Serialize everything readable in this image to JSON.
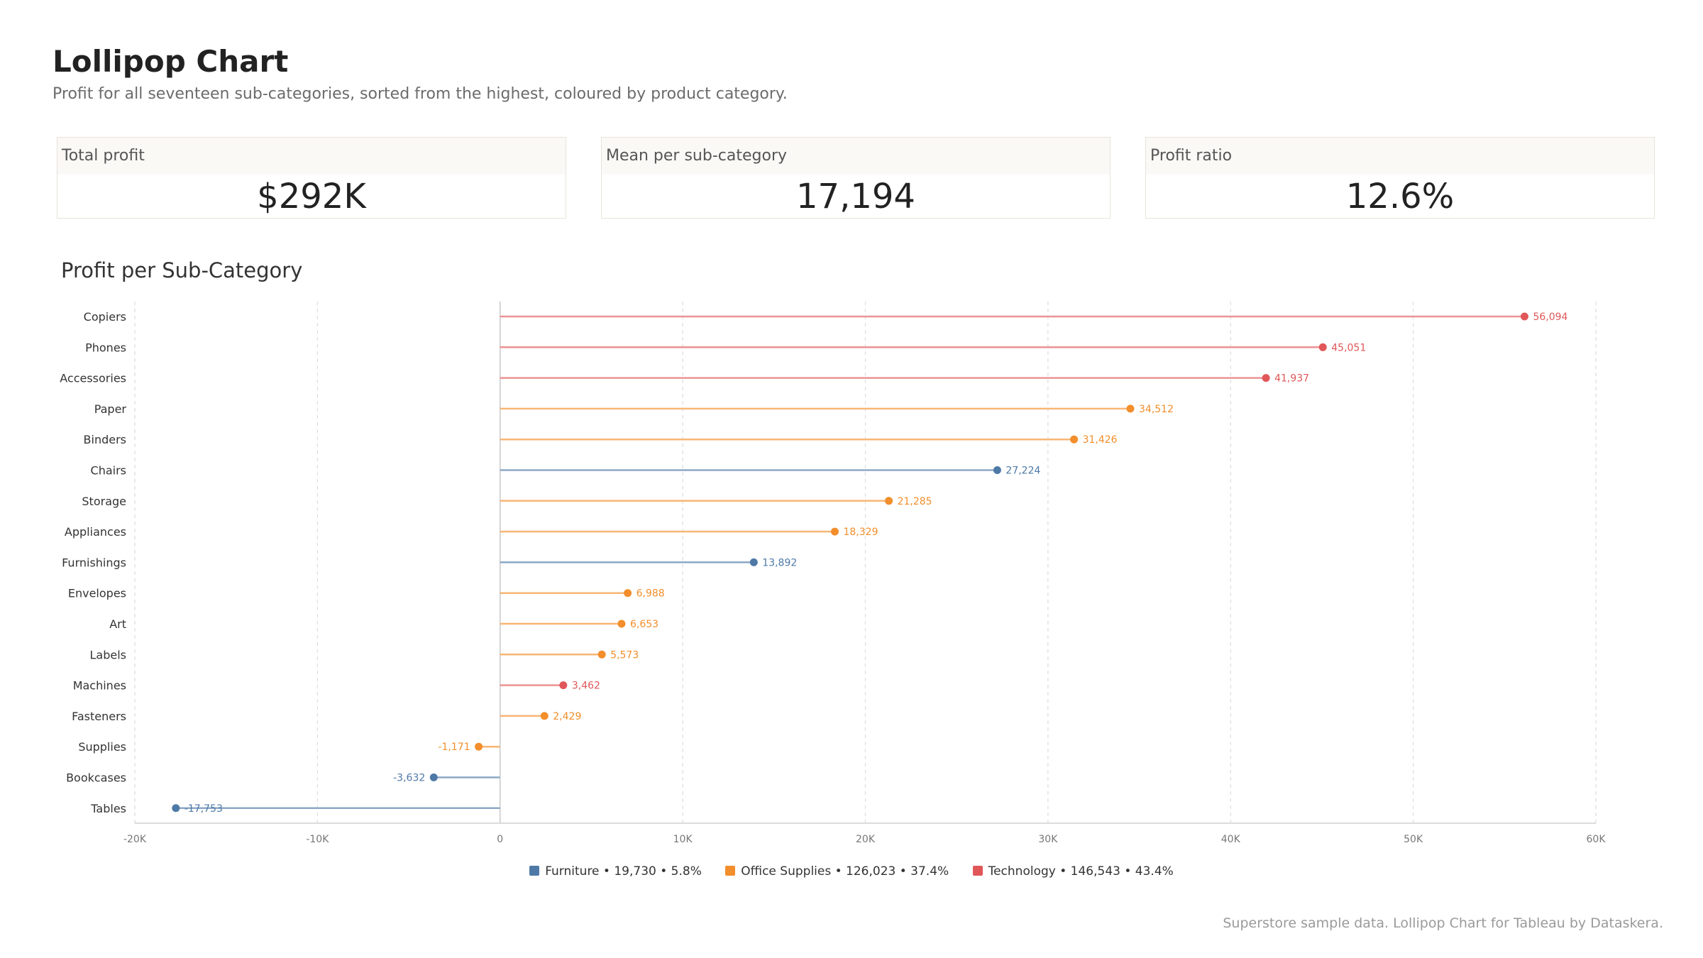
{
  "header": {
    "title": "Lollipop Chart",
    "subtitle": "Profit for all seventeen sub-categories, sorted from the highest, coloured by product category."
  },
  "kpis": [
    {
      "label": "Total profit",
      "value": "$292K"
    },
    {
      "label": "Mean per sub-category",
      "value": "17,194"
    },
    {
      "label": "Profit ratio",
      "value": "12.6%"
    }
  ],
  "section_title": "Profit per Sub-Category",
  "footer": "Superstore sample data. Lollipop Chart for Tableau by Dataskera.",
  "colors": {
    "Furniture": "#4e79a7",
    "Office Supplies": "#f28e2b",
    "Technology": "#e15759"
  },
  "chart_data": {
    "type": "lollipop",
    "orientation": "horizontal",
    "xlim": [
      -20000,
      60000
    ],
    "x_ticks": [
      -20000,
      -10000,
      0,
      10000,
      20000,
      30000,
      40000,
      50000,
      60000
    ],
    "x_tick_labels": [
      "-20K",
      "-10K",
      "0",
      "10K",
      "20K",
      "30K",
      "40K",
      "50K",
      "60K"
    ],
    "grid": "vertical dashed",
    "legend_position": "bottom-center",
    "legend": [
      {
        "category": "Furniture",
        "text": "Furniture • 19,730 • 5.8%"
      },
      {
        "category": "Office Supplies",
        "text": "Office Supplies • 126,023 • 37.4%"
      },
      {
        "category": "Technology",
        "text": "Technology • 146,543 • 43.4%"
      }
    ],
    "categories": [
      "Copiers",
      "Phones",
      "Accessories",
      "Paper",
      "Binders",
      "Chairs",
      "Storage",
      "Appliances",
      "Furnishings",
      "Envelopes",
      "Art",
      "Labels",
      "Machines",
      "Fasteners",
      "Supplies",
      "Bookcases",
      "Tables"
    ],
    "values": [
      56094,
      45051,
      41937,
      34512,
      31426,
      27224,
      21285,
      18329,
      13892,
      6988,
      6653,
      5573,
      3462,
      2429,
      -1171,
      -3632,
      -17753
    ],
    "value_labels": [
      "56,094",
      "45,051",
      "41,937",
      "34,512",
      "31,426",
      "27,224",
      "21,285",
      "18,329",
      "13,892",
      "6,988",
      "6,653",
      "5,573",
      "3,462",
      "2,429",
      "-1,171",
      "-3,632",
      "-17,753"
    ],
    "groups": [
      "Technology",
      "Technology",
      "Technology",
      "Office Supplies",
      "Office Supplies",
      "Furniture",
      "Office Supplies",
      "Office Supplies",
      "Furniture",
      "Office Supplies",
      "Office Supplies",
      "Office Supplies",
      "Technology",
      "Office Supplies",
      "Office Supplies",
      "Furniture",
      "Furniture"
    ]
  }
}
